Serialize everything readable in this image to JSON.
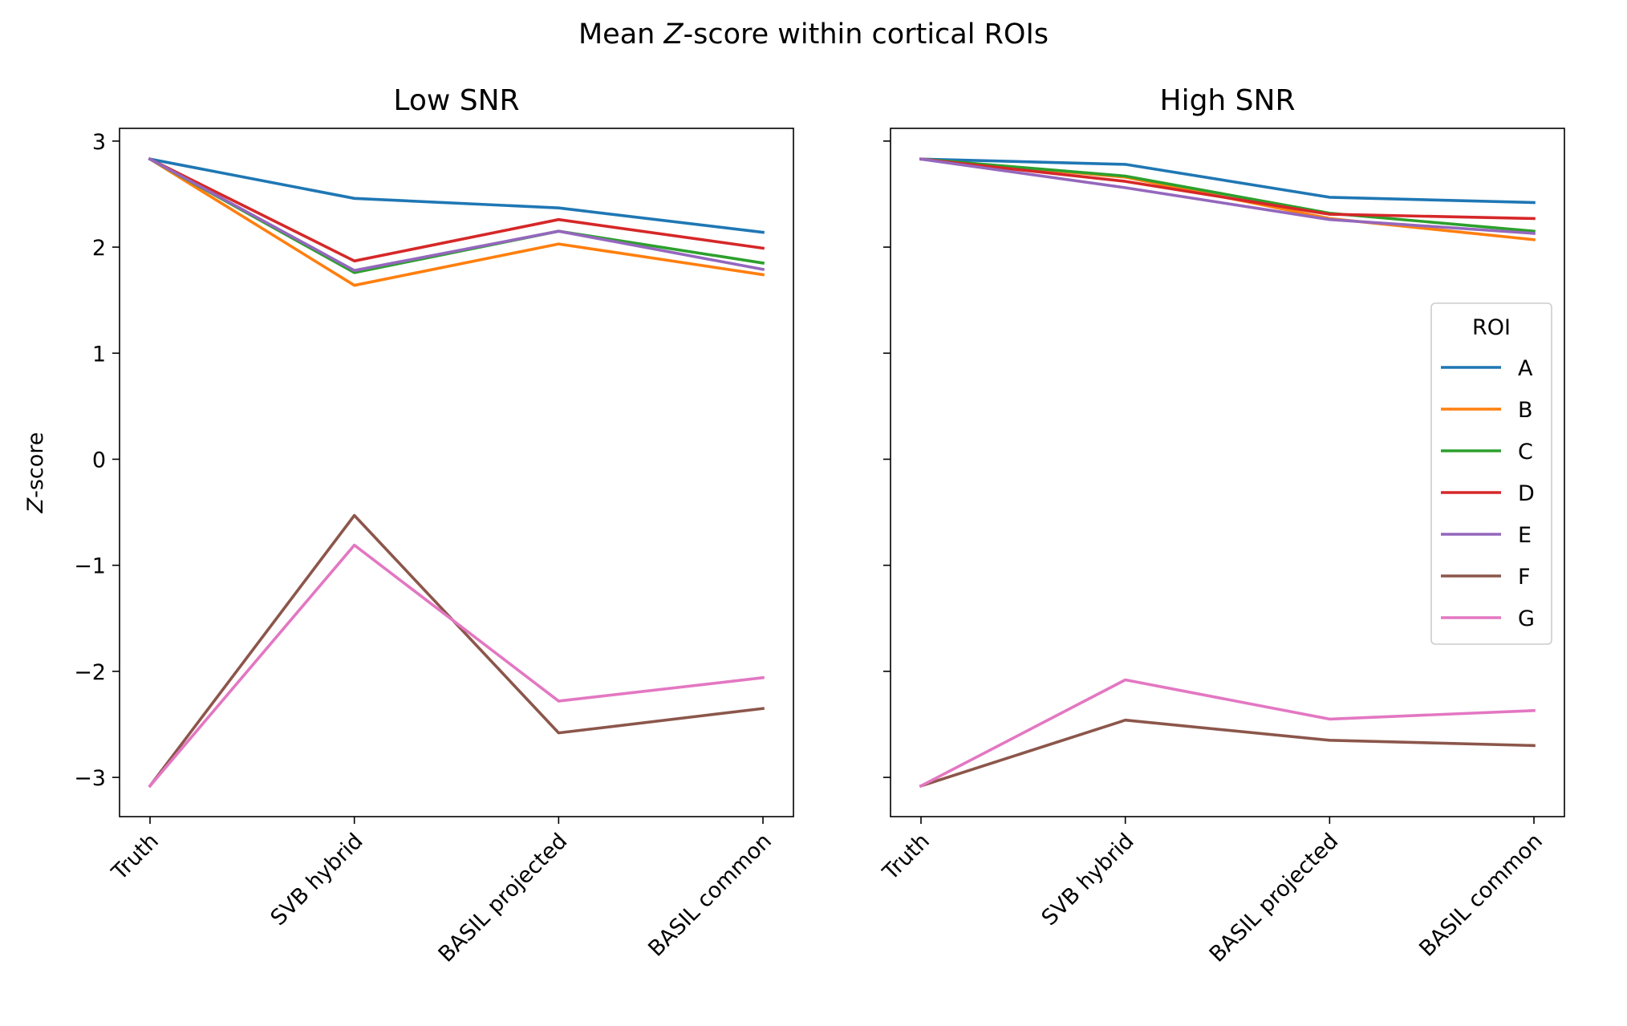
{
  "figure": {
    "suptitle_prefix": "Mean ",
    "suptitle_italic": "Z",
    "suptitle_suffix": "-score within cortical ROIs"
  },
  "chart_data": [
    {
      "type": "line",
      "title": "Low SNR",
      "ylabel_italic": "Z",
      "ylabel_suffix": "-score",
      "categories": [
        "Truth",
        "SVB hybrid",
        "BASIL projected",
        "BASIL common"
      ],
      "yticks": [
        3,
        2,
        1,
        0,
        -1,
        -2,
        -3
      ],
      "ytick_labels": [
        "3",
        "2",
        "1",
        "0",
        "−1",
        "−2",
        "−3"
      ],
      "ylim": [
        -3.37,
        3.12
      ],
      "series": [
        {
          "name": "A",
          "color": "#1f77b4",
          "values": [
            2.83,
            2.46,
            2.37,
            2.14
          ]
        },
        {
          "name": "B",
          "color": "#ff7f0e",
          "values": [
            2.83,
            1.64,
            2.03,
            1.74
          ]
        },
        {
          "name": "C",
          "color": "#2ca02c",
          "values": [
            2.83,
            1.76,
            2.15,
            1.85
          ]
        },
        {
          "name": "D",
          "color": "#d62728",
          "values": [
            2.83,
            1.87,
            2.26,
            1.99
          ]
        },
        {
          "name": "E",
          "color": "#9467bd",
          "values": [
            2.83,
            1.78,
            2.15,
            1.79
          ]
        },
        {
          "name": "F",
          "color": "#8c564b",
          "values": [
            -3.08,
            -0.53,
            -2.58,
            -2.35
          ]
        },
        {
          "name": "G",
          "color": "#e377c2",
          "values": [
            -3.08,
            -0.81,
            -2.28,
            -2.06
          ]
        }
      ]
    },
    {
      "type": "line",
      "title": "High SNR",
      "categories": [
        "Truth",
        "SVB hybrid",
        "BASIL projected",
        "BASIL common"
      ],
      "ylim": [
        -3.37,
        3.12
      ],
      "legend": {
        "title": "ROI",
        "position": "center-right"
      },
      "series": [
        {
          "name": "A",
          "color": "#1f77b4",
          "values": [
            2.83,
            2.78,
            2.47,
            2.42
          ]
        },
        {
          "name": "B",
          "color": "#ff7f0e",
          "values": [
            2.83,
            2.66,
            2.27,
            2.07
          ]
        },
        {
          "name": "C",
          "color": "#2ca02c",
          "values": [
            2.83,
            2.67,
            2.32,
            2.15
          ]
        },
        {
          "name": "D",
          "color": "#d62728",
          "values": [
            2.83,
            2.62,
            2.31,
            2.27
          ]
        },
        {
          "name": "E",
          "color": "#9467bd",
          "values": [
            2.83,
            2.56,
            2.26,
            2.13
          ]
        },
        {
          "name": "F",
          "color": "#8c564b",
          "values": [
            -3.08,
            -2.46,
            -2.65,
            -2.7
          ]
        },
        {
          "name": "G",
          "color": "#e377c2",
          "values": [
            -3.08,
            -2.08,
            -2.45,
            -2.37
          ]
        }
      ]
    }
  ]
}
